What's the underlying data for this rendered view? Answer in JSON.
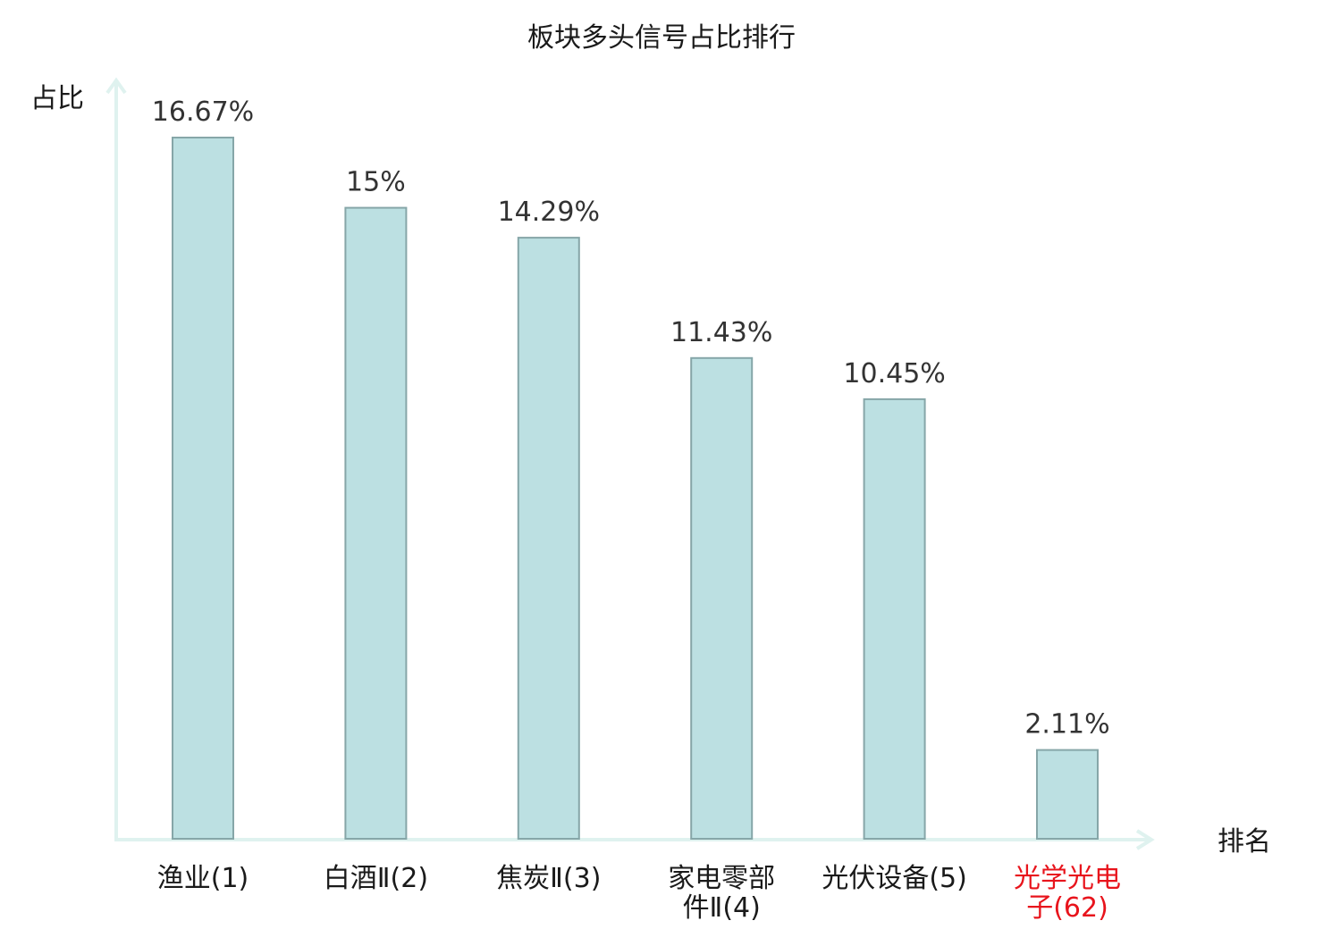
{
  "chart_data": {
    "type": "bar",
    "title": "板块多头信号占比排行",
    "ylabel": "占比",
    "xlabel": "排名",
    "categories": [
      "渔业(1)",
      "白酒Ⅱ(2)",
      "焦炭Ⅱ(3)",
      "家电零部件Ⅱ(4)",
      "光伏设备(5)",
      "光学光电子(62)"
    ],
    "category_lines": [
      [
        "渔业(1)"
      ],
      [
        "白酒Ⅱ(2)"
      ],
      [
        "焦炭Ⅱ(3)"
      ],
      [
        "家电零部",
        "件Ⅱ(4)"
      ],
      [
        "光伏设备(5)"
      ],
      [
        "光学光电",
        "子(62)"
      ]
    ],
    "values": [
      16.67,
      15,
      14.29,
      11.43,
      10.45,
      2.11
    ],
    "value_labels": [
      "16.67%",
      "15%",
      "14.29%",
      "11.43%",
      "10.45%",
      "2.11%"
    ],
    "highlight_index": 5,
    "ylim": [
      0,
      16.67
    ],
    "grid": false,
    "colors": {
      "bar_fill": "#bce0e2",
      "bar_stroke": "#86a6a8",
      "axis": "#dff2ef",
      "label": "#1a1a1a",
      "highlight": "#e8141c"
    }
  }
}
